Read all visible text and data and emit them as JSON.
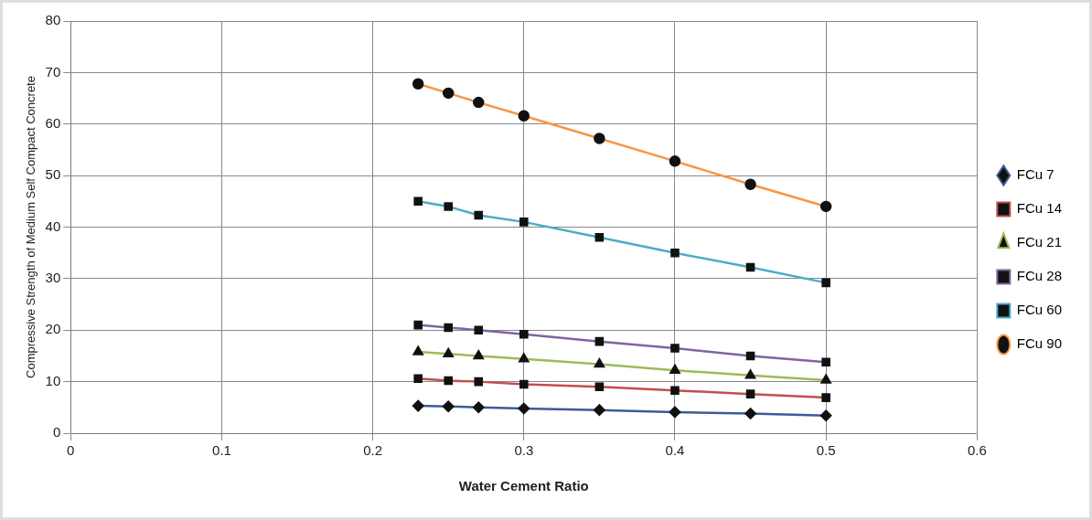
{
  "chart_data": {
    "type": "line",
    "xlabel": "Water Cement Ratio",
    "ylabel": "Compressive Strength of Medium Self Compact Concrete",
    "x": [
      0.23,
      0.25,
      0.27,
      0.3,
      0.35,
      0.4,
      0.45,
      0.5
    ],
    "xlim": [
      0,
      0.6
    ],
    "xticks": [
      0,
      0.1,
      0.2,
      0.3,
      0.4,
      0.5,
      0.6
    ],
    "ylim": [
      0,
      80
    ],
    "yticks": [
      0,
      10,
      20,
      30,
      40,
      50,
      60,
      70,
      80
    ],
    "grid": true,
    "legend": "right",
    "series": [
      {
        "name": "FCu 7",
        "color": "#3b5b9a",
        "marker": "diamond",
        "values": [
          5.3,
          5.2,
          5.0,
          4.8,
          4.5,
          4.1,
          3.8,
          3.4
        ]
      },
      {
        "name": "FCu 14",
        "color": "#c0504d",
        "marker": "square",
        "values": [
          10.6,
          10.2,
          10.0,
          9.5,
          9.0,
          8.3,
          7.6,
          6.9
        ]
      },
      {
        "name": "FCu 21",
        "color": "#9bbb59",
        "marker": "triangle",
        "values": [
          15.8,
          15.4,
          15.0,
          14.4,
          13.4,
          12.2,
          11.2,
          10.3
        ]
      },
      {
        "name": "FCu 28",
        "color": "#8064a2",
        "marker": "square",
        "values": [
          21.0,
          20.5,
          20.0,
          19.2,
          17.8,
          16.5,
          15.0,
          13.8
        ]
      },
      {
        "name": "FCu 60",
        "color": "#4bacc6",
        "marker": "square",
        "values": [
          45.0,
          44.0,
          42.3,
          41.0,
          38.0,
          35.0,
          32.2,
          29.2
        ]
      },
      {
        "name": "FCu 90",
        "color": "#f79646",
        "marker": "circle",
        "values": [
          67.8,
          66.0,
          64.2,
          61.6,
          57.2,
          52.8,
          48.3,
          44.0
        ]
      }
    ]
  }
}
